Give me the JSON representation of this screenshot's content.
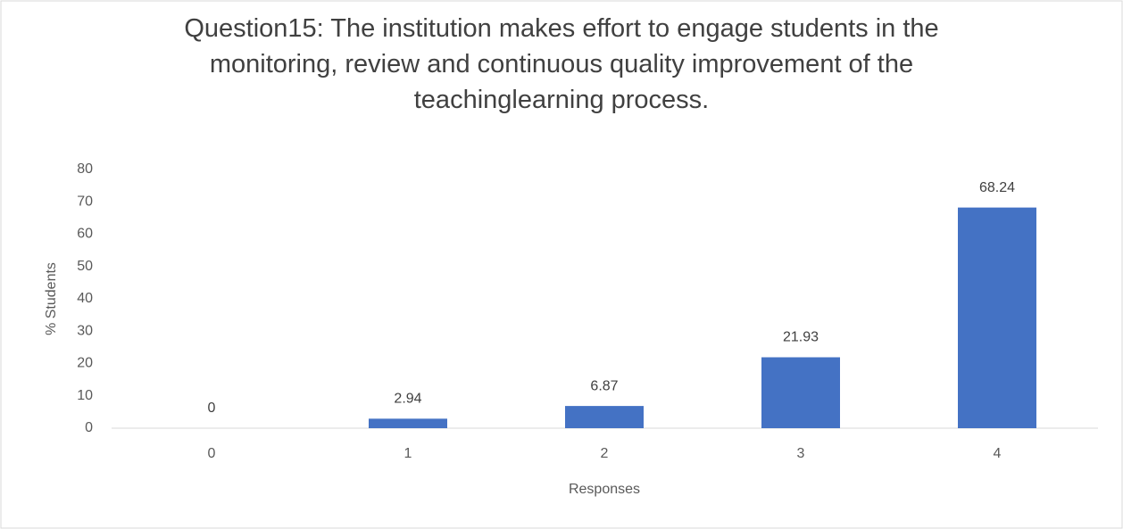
{
  "chart_data": {
    "type": "bar",
    "title": "Question15: The institution makes effort to engage students in the monitoring, review and continuous quality improvement of the teachinglearning process.",
    "x_label": "Responses",
    "y_label": "% Students",
    "categories": [
      "0",
      "1",
      "2",
      "3",
      "4"
    ],
    "values": [
      0,
      2.94,
      6.87,
      21.93,
      68.24
    ],
    "color": "#4472c4",
    "ylim": [
      0,
      80
    ],
    "yticks": [
      0,
      10,
      20,
      30,
      40,
      50,
      60,
      70,
      80
    ],
    "grid": false
  }
}
